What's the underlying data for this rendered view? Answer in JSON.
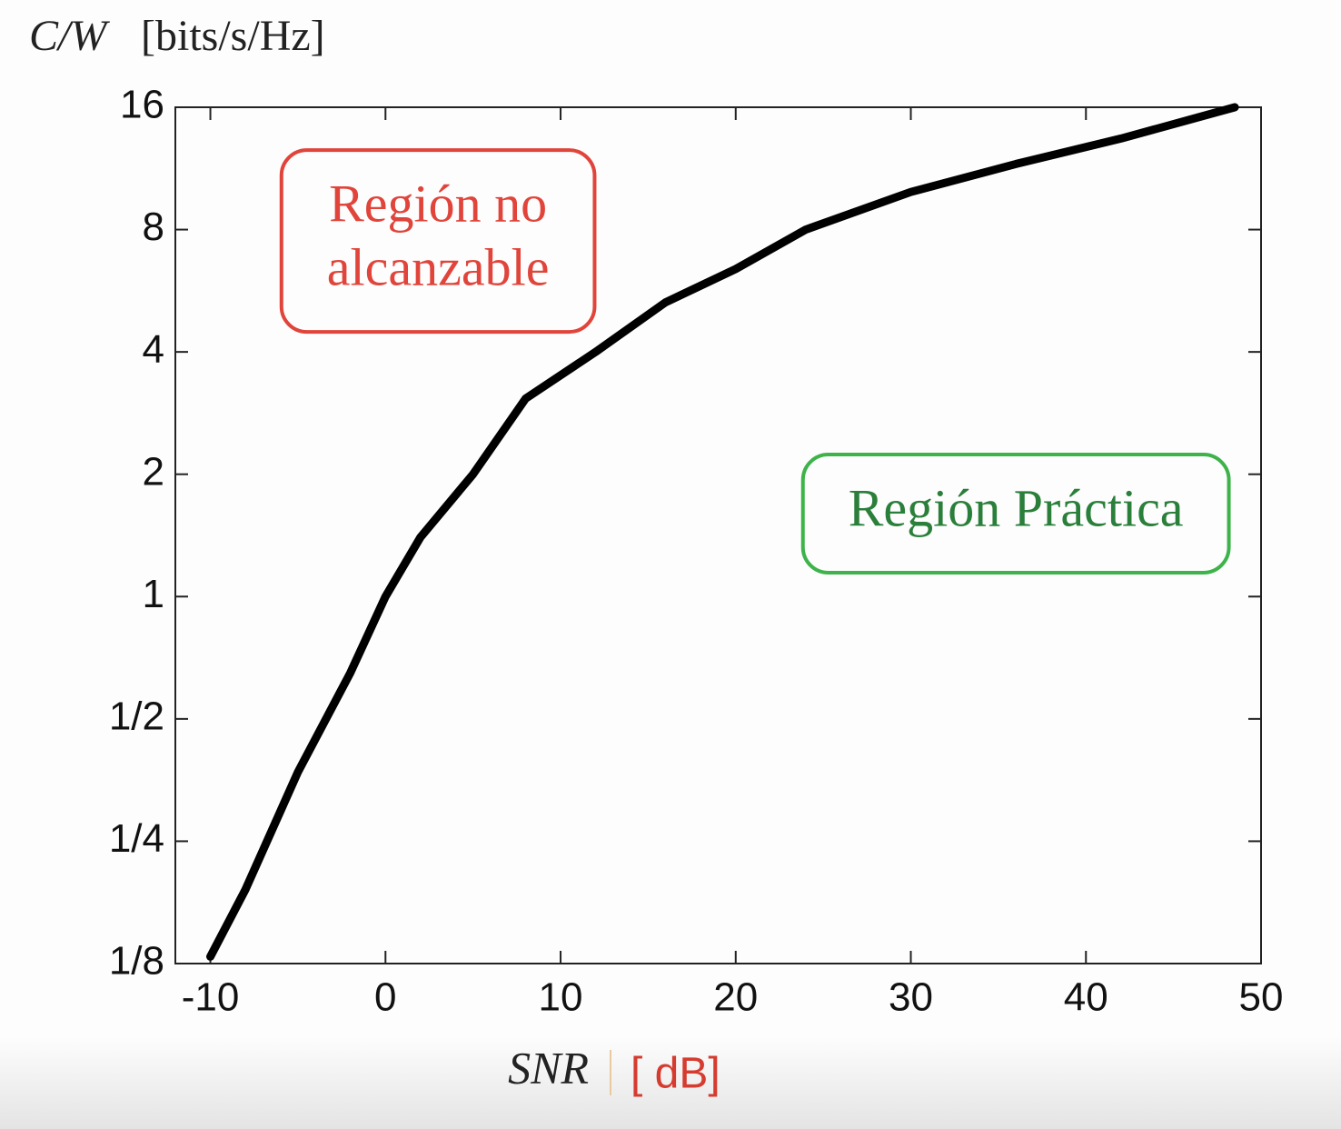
{
  "chart_data": {
    "type": "line",
    "y_label": {
      "symbol": "C/W",
      "unit": "[bits/s/Hz]"
    },
    "x_label": {
      "symbol": "SNR",
      "unit": "[ dB]"
    },
    "x": [
      -10,
      -8,
      -5,
      -2,
      0,
      2,
      5,
      8,
      12,
      16,
      20,
      24,
      30,
      36,
      42,
      48.5
    ],
    "series": [
      {
        "color": "#000000",
        "values": [
          0.13,
          0.19,
          0.37,
          0.65,
          1.0,
          1.4,
          2.0,
          3.07,
          4.0,
          5.3,
          6.4,
          8.0,
          9.9,
          11.6,
          13.4,
          16
        ]
      }
    ],
    "xlim": [
      -12,
      50
    ],
    "xticks": [
      -10,
      0,
      10,
      20,
      30,
      40,
      50
    ],
    "ylim": [
      0.125,
      16
    ],
    "log_scale_y": true,
    "yticks": [
      {
        "value": 0.125,
        "label": "1/8"
      },
      {
        "value": 0.25,
        "label": "1/4"
      },
      {
        "value": 0.5,
        "label": "1/2"
      },
      1,
      2,
      4,
      8,
      16
    ],
    "annotations": [
      {
        "lines": [
          "Región no",
          "alcanzable"
        ],
        "color": "#e0443a",
        "border": "#e0443a",
        "x": 3,
        "y": 7.5
      },
      {
        "lines": [
          "Región Práctica"
        ],
        "color": "#2a7f3a",
        "border": "#3db34a",
        "x": 36,
        "y": 1.6
      }
    ]
  }
}
